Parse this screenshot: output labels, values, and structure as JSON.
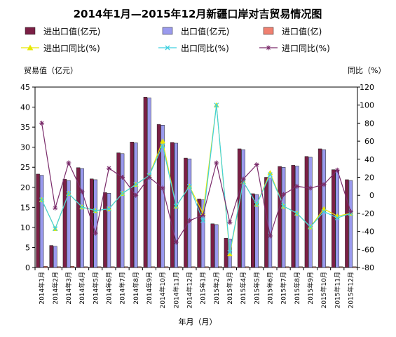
{
  "chart_data": {
    "type": "bar",
    "title": "2014年1月—2015年12月新疆口岸对吉贸易情况图",
    "xlabel": "年月（月）",
    "ylabel_left": "贸易值（亿元）",
    "ylabel_right": "同比（%）",
    "ylim_left": [
      0,
      45
    ],
    "ylim_right": [
      -80,
      120
    ],
    "yticks_left": [
      "0",
      "5",
      "10",
      "15",
      "20",
      "25",
      "30",
      "35",
      "40",
      "45"
    ],
    "yticks_right": [
      "-80",
      "-60",
      "-40",
      "-20",
      "0",
      "20",
      "40",
      "60",
      "80",
      "100",
      "120"
    ],
    "categories": [
      "2014年1月",
      "2014年2月",
      "2014年3月",
      "2014年4月",
      "2014年5月",
      "2014年6月",
      "2014年7月",
      "2014年8月",
      "2014年9月",
      "2014年10月",
      "2014年11月",
      "2014年12月",
      "2015年1月",
      "2015年2月",
      "2015年3月",
      "2015年4月",
      "2015年5月",
      "2015年6月",
      "2015年7月",
      "2015年8月",
      "2015年9月",
      "2015年10月",
      "2015年11月",
      "2015年12月"
    ],
    "series": [
      {
        "name": "进出口值(亿元)",
        "type": "bar",
        "axis": "left",
        "color": "#7b1f45",
        "values": [
          23.3,
          5.5,
          22.0,
          24.9,
          22.1,
          18.7,
          28.6,
          31.3,
          42.5,
          35.7,
          31.2,
          27.3,
          17.1,
          10.9,
          7.3,
          29.6,
          18.4,
          22.5,
          25.2,
          25.5,
          27.7,
          29.6,
          24.4,
          21.9
        ]
      },
      {
        "name": "出口值(亿元)",
        "type": "bar",
        "axis": "left",
        "color": "#9a9aee",
        "values": [
          23.0,
          5.3,
          21.7,
          24.7,
          21.9,
          18.5,
          28.4,
          31.1,
          42.3,
          35.5,
          31.0,
          27.1,
          16.9,
          10.7,
          7.1,
          29.4,
          18.2,
          22.3,
          25.0,
          25.3,
          27.5,
          29.4,
          24.2,
          21.7
        ]
      },
      {
        "name": "进口值(亿)",
        "type": "bar",
        "axis": "left",
        "color": "#f08070",
        "values": [
          0.3,
          0.2,
          0.3,
          0.2,
          0.2,
          0.2,
          0.2,
          0.2,
          0.2,
          0.2,
          0.2,
          0.2,
          0.2,
          0.2,
          0.2,
          0.2,
          0.2,
          0.2,
          0.2,
          0.2,
          0.2,
          0.2,
          0.2,
          0.2
        ]
      },
      {
        "name": "进出口同比(%)",
        "type": "line",
        "axis": "right",
        "color": "#e8e800",
        "marker": "triangle",
        "values": [
          -5,
          -37,
          2,
          -13,
          -17,
          -15,
          2,
          12,
          22,
          60,
          -12,
          10,
          -20,
          100,
          -65,
          15,
          -10,
          25,
          -12,
          -20,
          -35,
          -15,
          -23,
          -20
        ]
      },
      {
        "name": "出口同比(%)",
        "type": "line",
        "axis": "right",
        "color": "#40d0e0",
        "marker": "cross",
        "values": [
          -5,
          -37,
          2,
          -13,
          -17,
          -15,
          2,
          12,
          22,
          55,
          -12,
          10,
          -28,
          100,
          -63,
          15,
          -10,
          23,
          -12,
          -20,
          -35,
          -18,
          -25,
          -20
        ]
      },
      {
        "name": "进口同比(%)",
        "type": "line",
        "axis": "right",
        "color": "#7a2b6a",
        "marker": "star",
        "values": [
          80,
          -14,
          36,
          4,
          -42,
          30,
          20,
          0,
          20,
          8,
          -52,
          -28,
          -22,
          36,
          -30,
          18,
          34,
          -45,
          1,
          10,
          8,
          12,
          28,
          -18
        ]
      }
    ],
    "legend_position": "top",
    "grid": false
  }
}
